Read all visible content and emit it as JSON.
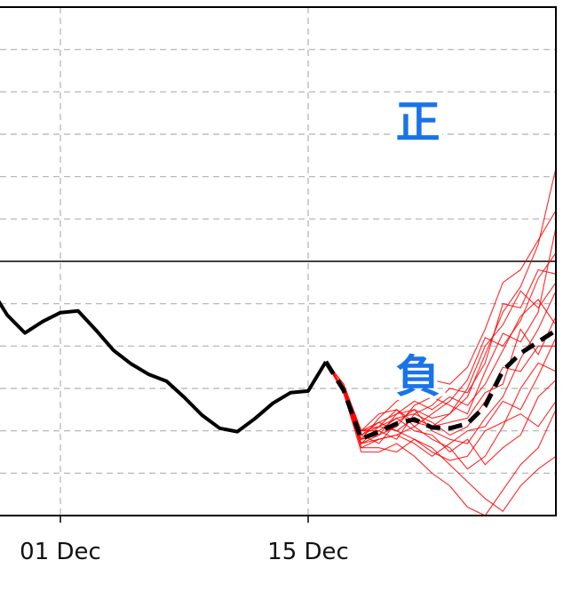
{
  "chart_data": {
    "type": "line",
    "title": "",
    "xlabel": "",
    "ylabel": "",
    "ylim": [
      -6,
      6
    ],
    "xlim": [
      "Nov 27.6",
      "Dec 29"
    ],
    "grid": true,
    "zero_line": true,
    "x_tick_labels": [
      {
        "date": "Dec 1",
        "label": "01 Dec"
      },
      {
        "date": "Dec 15",
        "label": "15 Dec"
      }
    ],
    "annotations": [
      {
        "text": "正",
        "date": "Dec 21.2",
        "value": 3.3
      },
      {
        "text": "負",
        "date": "Dec 21.2",
        "value": -2.7
      }
    ],
    "colors": {
      "observed": "#000000",
      "members": "#ff0000",
      "mean": "#000000",
      "annotation": "#1a73e8"
    },
    "observed": {
      "style": "solid",
      "x": [
        "Nov 27",
        "Nov 28",
        "Nov 29",
        "Nov 30",
        "Dec 1",
        "Dec 2",
        "Dec 3",
        "Dec 4",
        "Dec 5",
        "Dec 6",
        "Dec 7",
        "Dec 8",
        "Dec 9",
        "Dec 10",
        "Dec 11",
        "Dec 12",
        "Dec 13",
        "Dec 14",
        "Dec 15",
        "Dec 16"
      ],
      "values": [
        -0.6,
        -1.27,
        -1.69,
        -1.42,
        -1.21,
        -1.17,
        -1.62,
        -2.1,
        -2.42,
        -2.67,
        -2.83,
        -3.21,
        -3.63,
        -3.94,
        -4.02,
        -3.71,
        -3.35,
        -3.1,
        -3.06,
        -2.37
      ]
    },
    "forecast_x": [
      "Dec 16",
      "Dec 17",
      "Dec 18",
      "Dec 19",
      "Dec 20",
      "Dec 21",
      "Dec 22",
      "Dec 23",
      "Dec 24",
      "Dec 25",
      "Dec 26",
      "Dec 27",
      "Dec 28",
      "Dec 29"
    ],
    "ensemble_mean": {
      "style": "dashed",
      "values": [
        -2.37,
        -3.04,
        -4.19,
        -4.02,
        -3.83,
        -3.73,
        -3.92,
        -3.94,
        -3.83,
        -3.42,
        -2.58,
        -2.17,
        -1.9,
        -1.63
      ]
    },
    "ensemble_members": [
      [
        -2.37,
        -3.0,
        -4.3,
        -4.1,
        -3.6,
        -3.5,
        -3.7,
        -3.6,
        -3.2,
        -2.2,
        -1.2,
        -0.6,
        0.4,
        2.2
      ],
      [
        -2.37,
        -3.1,
        -4.0,
        -3.9,
        -4.0,
        -4.2,
        -4.4,
        -4.8,
        -5.2,
        -5.6,
        -5.9,
        -5.3,
        -4.9,
        -4.6
      ],
      [
        -2.37,
        -2.9,
        -4.2,
        -3.7,
        -3.3,
        -3.1,
        -2.8,
        -2.9,
        -2.5,
        -1.6,
        -0.5,
        -0.2,
        0.5,
        1.2
      ],
      [
        -2.37,
        -3.1,
        -4.4,
        -4.4,
        -4.5,
        -4.2,
        -4.5,
        -4.7,
        -4.6,
        -4.0,
        -3.8,
        -3.6,
        -3.9,
        -3.3
      ],
      [
        -2.37,
        -3.0,
        -4.1,
        -3.9,
        -3.5,
        -3.8,
        -3.9,
        -3.6,
        -3.0,
        -2.0,
        -1.5,
        -0.7,
        -1.1,
        -0.5
      ],
      [
        -2.37,
        -3.1,
        -4.3,
        -4.2,
        -4.1,
        -3.9,
        -4.2,
        -4.4,
        -4.9,
        -4.6,
        -3.9,
        -3.0,
        -2.4,
        -2.6
      ],
      [
        -2.37,
        -3.0,
        -4.0,
        -3.8,
        -3.6,
        -3.3,
        -3.5,
        -3.2,
        -3.4,
        -2.9,
        -2.1,
        -1.3,
        -0.9,
        -1.5
      ],
      [
        -2.37,
        -3.1,
        -4.5,
        -4.5,
        -4.3,
        -4.6,
        -5.0,
        -5.3,
        -5.8,
        -6.0,
        -5.4,
        -4.8,
        -4.4,
        -3.5
      ],
      [
        -2.37,
        -2.9,
        -4.0,
        -3.6,
        -3.5,
        -3.9,
        -3.6,
        -3.3,
        -2.8,
        -1.8,
        -2.0,
        -1.4,
        -0.4,
        0.2
      ],
      [
        -2.37,
        -3.0,
        -4.2,
        -4.0,
        -4.2,
        -3.6,
        -3.8,
        -4.1,
        -3.9,
        -3.3,
        -2.5,
        -2.6,
        -2.0,
        -2.0
      ],
      [
        -2.37,
        -3.1,
        -4.1,
        -4.3,
        -3.8,
        -3.5,
        -4.0,
        -4.2,
        -4.3,
        -3.7,
        -3.2,
        -2.3,
        -1.6,
        -0.7
      ],
      [
        -2.37,
        -3.0,
        -4.3,
        -3.9,
        -3.7,
        -4.0,
        -4.1,
        -4.5,
        -4.2,
        -4.8,
        -4.4,
        -4.1,
        -3.2,
        -2.8
      ],
      [
        -2.37,
        -3.0,
        -4.2,
        -4.1,
        -3.9,
        -3.4,
        -3.2,
        -3.4,
        -3.6,
        -2.6,
        -1.7,
        -1.9,
        -1.2,
        0.8
      ],
      [
        -2.37,
        -3.1,
        -4.1,
        -3.8,
        -4.0,
        -3.7,
        -3.9,
        -3.8,
        -3.7,
        -3.1,
        -2.9,
        -1.6,
        -2.2,
        -1.3
      ],
      [
        -2.37,
        -2.9,
        -4.0,
        -4.0,
        -3.7,
        -3.6,
        -3.4,
        -3.0,
        -3.1,
        -2.4,
        -1.0,
        -1.1,
        -0.2,
        -0.3
      ],
      [
        -2.37,
        -3.0,
        -4.4,
        -4.2,
        -4.1,
        -4.3,
        -4.6,
        -4.3,
        -4.0,
        -3.9,
        -3.3,
        -3.5,
        -2.7,
        -1.8
      ]
    ]
  }
}
